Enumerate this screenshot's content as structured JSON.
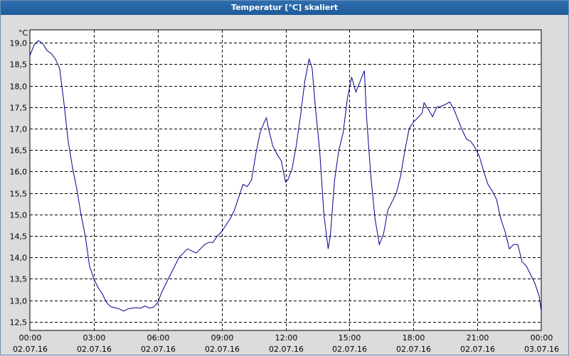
{
  "window": {
    "title": "Temperatur [°C] skaliert"
  },
  "chart_data": {
    "type": "line",
    "title": "Temperatur [°C] skaliert",
    "ylabel": "°C",
    "xlabel": "",
    "ylim": [
      12.5,
      19.0
    ],
    "xlim_hours": [
      0,
      24
    ],
    "grid": true,
    "yticks": [
      "12,5",
      "13,0",
      "13,5",
      "14,0",
      "14,5",
      "15,0",
      "15,5",
      "16,0",
      "16,5",
      "17,0",
      "17,5",
      "18,0",
      "18,5",
      "19,0"
    ],
    "ytick_values": [
      12.5,
      13.0,
      13.5,
      14.0,
      14.5,
      15.0,
      15.5,
      16.0,
      16.5,
      17.0,
      17.5,
      18.0,
      18.5,
      19.0
    ],
    "xticks": [
      {
        "time": "00:00",
        "date": "02.07.16"
      },
      {
        "time": "03:00",
        "date": "02.07.16"
      },
      {
        "time": "06:00",
        "date": "02.07.16"
      },
      {
        "time": "09:00",
        "date": "02.07.16"
      },
      {
        "time": "12:00",
        "date": "02.07.16"
      },
      {
        "time": "15:00",
        "date": "02.07.16"
      },
      {
        "time": "18:00",
        "date": "02.07.16"
      },
      {
        "time": "21:00",
        "date": "02.07.16"
      },
      {
        "time": "00:00",
        "date": "03.07.16"
      }
    ],
    "series": [
      {
        "color": "#00008b",
        "points": [
          [
            0.0,
            18.7
          ],
          [
            0.2,
            18.95
          ],
          [
            0.4,
            19.05
          ],
          [
            0.6,
            18.98
          ],
          [
            0.8,
            18.82
          ],
          [
            1.0,
            18.75
          ],
          [
            1.2,
            18.62
          ],
          [
            1.4,
            18.4
          ],
          [
            1.6,
            17.6
          ],
          [
            1.8,
            16.7
          ],
          [
            2.0,
            16.1
          ],
          [
            2.2,
            15.6
          ],
          [
            2.4,
            15.0
          ],
          [
            2.6,
            14.5
          ],
          [
            2.8,
            13.8
          ],
          [
            3.0,
            13.5
          ],
          [
            3.2,
            13.3
          ],
          [
            3.4,
            13.15
          ],
          [
            3.6,
            12.95
          ],
          [
            3.8,
            12.85
          ],
          [
            4.0,
            12.83
          ],
          [
            4.2,
            12.8
          ],
          [
            4.4,
            12.75
          ],
          [
            4.6,
            12.8
          ],
          [
            4.8,
            12.82
          ],
          [
            5.0,
            12.83
          ],
          [
            5.2,
            12.82
          ],
          [
            5.4,
            12.87
          ],
          [
            5.6,
            12.82
          ],
          [
            5.8,
            12.84
          ],
          [
            6.0,
            12.95
          ],
          [
            6.2,
            13.2
          ],
          [
            6.4,
            13.4
          ],
          [
            6.6,
            13.6
          ],
          [
            6.8,
            13.8
          ],
          [
            7.0,
            14.0
          ],
          [
            7.2,
            14.1
          ],
          [
            7.4,
            14.2
          ],
          [
            7.6,
            14.15
          ],
          [
            7.8,
            14.1
          ],
          [
            8.0,
            14.2
          ],
          [
            8.2,
            14.3
          ],
          [
            8.4,
            14.35
          ],
          [
            8.6,
            14.35
          ],
          [
            8.8,
            14.5
          ],
          [
            9.0,
            14.6
          ],
          [
            9.2,
            14.75
          ],
          [
            9.4,
            14.9
          ],
          [
            9.6,
            15.1
          ],
          [
            9.8,
            15.4
          ],
          [
            10.0,
            15.7
          ],
          [
            10.2,
            15.65
          ],
          [
            10.4,
            15.8
          ],
          [
            10.6,
            16.4
          ],
          [
            10.8,
            16.9
          ],
          [
            11.0,
            17.15
          ],
          [
            11.1,
            17.25
          ],
          [
            11.2,
            17.0
          ],
          [
            11.4,
            16.6
          ],
          [
            11.6,
            16.4
          ],
          [
            11.8,
            16.25
          ],
          [
            12.0,
            15.75
          ],
          [
            12.1,
            15.8
          ],
          [
            12.3,
            16.05
          ],
          [
            12.5,
            16.6
          ],
          [
            12.7,
            17.3
          ],
          [
            12.9,
            18.1
          ],
          [
            13.1,
            18.62
          ],
          [
            13.25,
            18.4
          ],
          [
            13.4,
            17.5
          ],
          [
            13.6,
            16.5
          ],
          [
            13.8,
            15.0
          ],
          [
            14.0,
            14.2
          ],
          [
            14.1,
            14.5
          ],
          [
            14.3,
            15.8
          ],
          [
            14.5,
            16.5
          ],
          [
            14.7,
            16.9
          ],
          [
            14.9,
            17.7
          ],
          [
            15.1,
            18.2
          ],
          [
            15.3,
            17.85
          ],
          [
            15.5,
            18.1
          ],
          [
            15.7,
            18.35
          ],
          [
            15.8,
            17.3
          ],
          [
            16.0,
            15.9
          ],
          [
            16.2,
            14.9
          ],
          [
            16.4,
            14.3
          ],
          [
            16.6,
            14.55
          ],
          [
            16.8,
            15.1
          ],
          [
            17.0,
            15.3
          ],
          [
            17.2,
            15.5
          ],
          [
            17.4,
            15.9
          ],
          [
            17.6,
            16.5
          ],
          [
            17.8,
            17.0
          ],
          [
            18.0,
            17.15
          ],
          [
            18.2,
            17.25
          ],
          [
            18.4,
            17.35
          ],
          [
            18.5,
            17.6
          ],
          [
            18.7,
            17.45
          ],
          [
            18.9,
            17.28
          ],
          [
            19.1,
            17.5
          ],
          [
            19.3,
            17.52
          ],
          [
            19.5,
            17.56
          ],
          [
            19.7,
            17.62
          ],
          [
            19.9,
            17.45
          ],
          [
            20.1,
            17.2
          ],
          [
            20.3,
            16.95
          ],
          [
            20.5,
            16.75
          ],
          [
            20.7,
            16.7
          ],
          [
            20.9,
            16.55
          ],
          [
            21.1,
            16.35
          ],
          [
            21.3,
            16.0
          ],
          [
            21.5,
            15.7
          ],
          [
            21.7,
            15.55
          ],
          [
            21.9,
            15.35
          ],
          [
            22.1,
            14.9
          ],
          [
            22.3,
            14.6
          ],
          [
            22.5,
            14.2
          ],
          [
            22.7,
            14.3
          ],
          [
            22.9,
            14.3
          ],
          [
            23.1,
            13.9
          ],
          [
            23.3,
            13.8
          ],
          [
            23.5,
            13.6
          ],
          [
            23.7,
            13.4
          ],
          [
            23.9,
            13.1
          ],
          [
            24.0,
            12.75
          ]
        ]
      }
    ]
  }
}
